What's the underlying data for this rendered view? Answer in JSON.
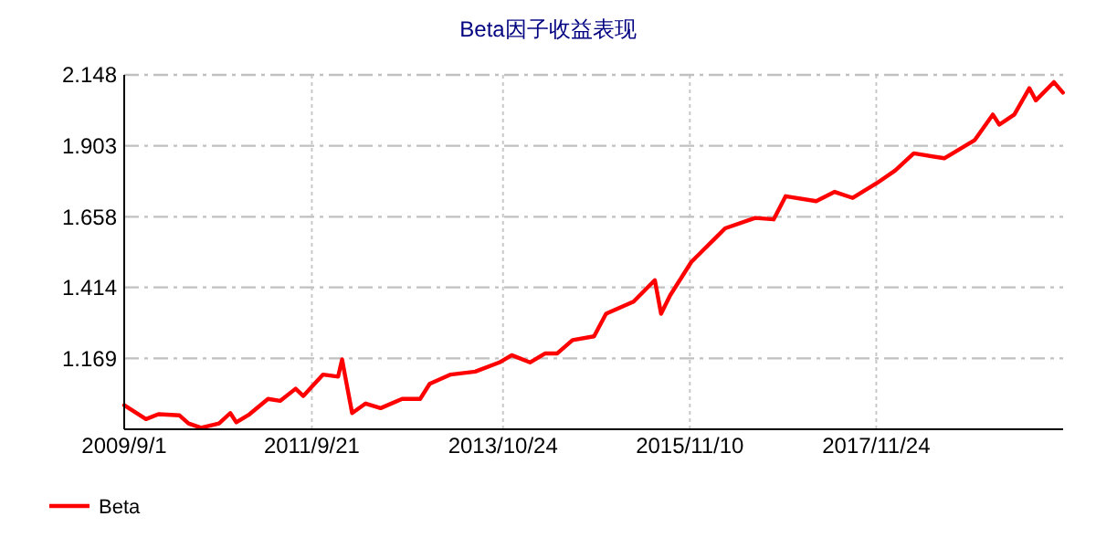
{
  "chart_data": {
    "type": "line",
    "title": "Beta因子收益表现",
    "xlim": [
      "2009-09-01",
      "2019-12-11"
    ],
    "xticks": [
      {
        "value": "2009-09-01",
        "label": "2009/9/1"
      },
      {
        "value": "2011-09-21",
        "label": "2011/9/21"
      },
      {
        "value": "2013-10-24",
        "label": "2013/10/24"
      },
      {
        "value": "2015-11-10",
        "label": "2015/11/10"
      },
      {
        "value": "2017-11-24",
        "label": "2017/11/24"
      }
    ],
    "ylim": [
      0.924,
      2.148
    ],
    "yticks": [
      1.169,
      1.414,
      1.658,
      1.903,
      2.148
    ],
    "grid": true,
    "legend": "bottom left",
    "marker": "none",
    "line_style": "solid",
    "series": [
      {
        "name": "Beta",
        "color": "#ff0000",
        "x": [
          "2009-09-01",
          "2009-11-27",
          "2010-01-16",
          "2010-04-10",
          "2010-05-16",
          "2010-07-05",
          "2010-09-15",
          "2010-10-30",
          "2010-11-23",
          "2011-01-15",
          "2011-03-30",
          "2011-05-17",
          "2011-07-18",
          "2011-08-18",
          "2011-11-05",
          "2012-01-04",
          "2012-01-20",
          "2012-01-31",
          "2012-02-29",
          "2012-04-23",
          "2012-06-22",
          "2012-09-16",
          "2012-11-27",
          "2013-01-04",
          "2013-03-29",
          "2013-07-05",
          "2013-10-10",
          "2013-11-28",
          "2014-02-09",
          "2014-04-11",
          "2014-05-29",
          "2014-07-29",
          "2014-10-23",
          "2014-12-10",
          "2015-03-30",
          "2015-06-23",
          "2015-07-18",
          "2015-08-23",
          "2015-11-16",
          "2016-02-09",
          "2016-03-30",
          "2016-07-28",
          "2016-10-10",
          "2016-11-27",
          "2017-03-29",
          "2017-06-11",
          "2017-08-22",
          "2017-11-28",
          "2018-02-08",
          "2018-04-23",
          "2018-08-23",
          "2018-12-23",
          "2019-03-05",
          "2019-03-31",
          "2019-05-30",
          "2019-07-29",
          "2019-08-24",
          "2019-11-04",
          "2019-12-10"
        ],
        "values": [
          1.007,
          0.959,
          0.976,
          0.972,
          0.944,
          0.929,
          0.944,
          0.98,
          0.948,
          0.976,
          1.029,
          1.022,
          1.064,
          1.039,
          1.113,
          1.106,
          1.165,
          1.113,
          0.98,
          1.013,
          0.997,
          1.029,
          1.029,
          1.081,
          1.113,
          1.123,
          1.155,
          1.18,
          1.155,
          1.186,
          1.186,
          1.232,
          1.245,
          1.323,
          1.365,
          1.439,
          1.323,
          1.386,
          1.502,
          1.575,
          1.618,
          1.654,
          1.649,
          1.729,
          1.712,
          1.744,
          1.723,
          1.775,
          1.818,
          1.877,
          1.86,
          1.923,
          2.011,
          1.976,
          2.011,
          2.102,
          2.06,
          2.123,
          2.087
        ]
      }
    ]
  }
}
